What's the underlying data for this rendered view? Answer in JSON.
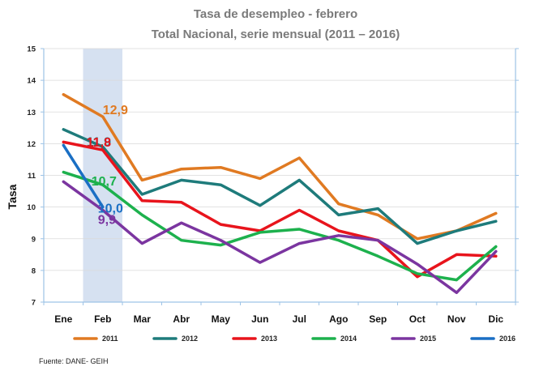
{
  "chart_data": {
    "type": "line",
    "title": "Tasa de desempleo - febrero",
    "subtitle": "Total Nacional, serie mensual (2011 – 2016)",
    "ylabel": "Tasa",
    "xlabel": "",
    "ylim": [
      7,
      15
    ],
    "yticks": [
      "7",
      "8",
      "9",
      "10",
      "11",
      "12",
      "13",
      "14",
      "15"
    ],
    "categories": [
      "Ene",
      "Feb",
      "Mar",
      "Abr",
      "May",
      "Jun",
      "Jul",
      "Ago",
      "Sep",
      "Oct",
      "Nov",
      "Dic"
    ],
    "highlight_category": "Feb",
    "series": [
      {
        "name": "2011",
        "color": "#e07a22",
        "values": [
          13.55,
          12.85,
          10.85,
          11.2,
          11.25,
          10.9,
          11.55,
          10.1,
          9.75,
          9.0,
          9.25,
          9.8
        ]
      },
      {
        "name": "2012",
        "color": "#1e7b7b",
        "values": [
          12.45,
          11.9,
          10.4,
          10.85,
          10.7,
          10.05,
          10.85,
          9.75,
          9.95,
          8.85,
          9.25,
          9.55
        ]
      },
      {
        "name": "2013",
        "color": "#e8141c",
        "values": [
          12.05,
          11.8,
          10.2,
          10.15,
          9.45,
          9.25,
          9.9,
          9.25,
          8.95,
          7.8,
          8.5,
          8.45
        ]
      },
      {
        "name": "2014",
        "color": "#1db14d",
        "values": [
          11.1,
          10.7,
          9.75,
          8.95,
          8.8,
          9.2,
          9.3,
          8.95,
          8.45,
          7.9,
          7.7,
          8.75
        ]
      },
      {
        "name": "2015",
        "color": "#7b35a0",
        "values": [
          10.8,
          9.9,
          8.85,
          9.5,
          8.95,
          8.25,
          8.85,
          9.1,
          8.95,
          8.2,
          7.3,
          8.6
        ]
      },
      {
        "name": "2016",
        "color": "#1a6fc4",
        "values": [
          11.95,
          10.0,
          null,
          null,
          null,
          null,
          null,
          null,
          null,
          null,
          null,
          null
        ]
      }
    ],
    "data_labels": [
      {
        "text": "12,9",
        "series": "2011",
        "category": "Feb",
        "value": 12.85,
        "color": "#e07a22"
      },
      {
        "text": "11,9",
        "series": "2012",
        "category": "Feb",
        "value": 11.9,
        "color": "#1e7b7b"
      },
      {
        "text": "11,8",
        "series": "2013",
        "category": "Feb",
        "value": 11.8,
        "color": "#e8141c"
      },
      {
        "text": "10,7",
        "series": "2014",
        "category": "Feb",
        "value": 10.7,
        "color": "#1db14d"
      },
      {
        "text": "10,0",
        "series": "2016",
        "category": "Feb",
        "value": 10.0,
        "color": "#1a6fc4"
      },
      {
        "text": "9,9",
        "series": "2015",
        "category": "Feb",
        "value": 9.9,
        "color": "#7b35a0"
      }
    ],
    "legend_position": "bottom",
    "source": "Fuente: DANE- GEIH"
  }
}
